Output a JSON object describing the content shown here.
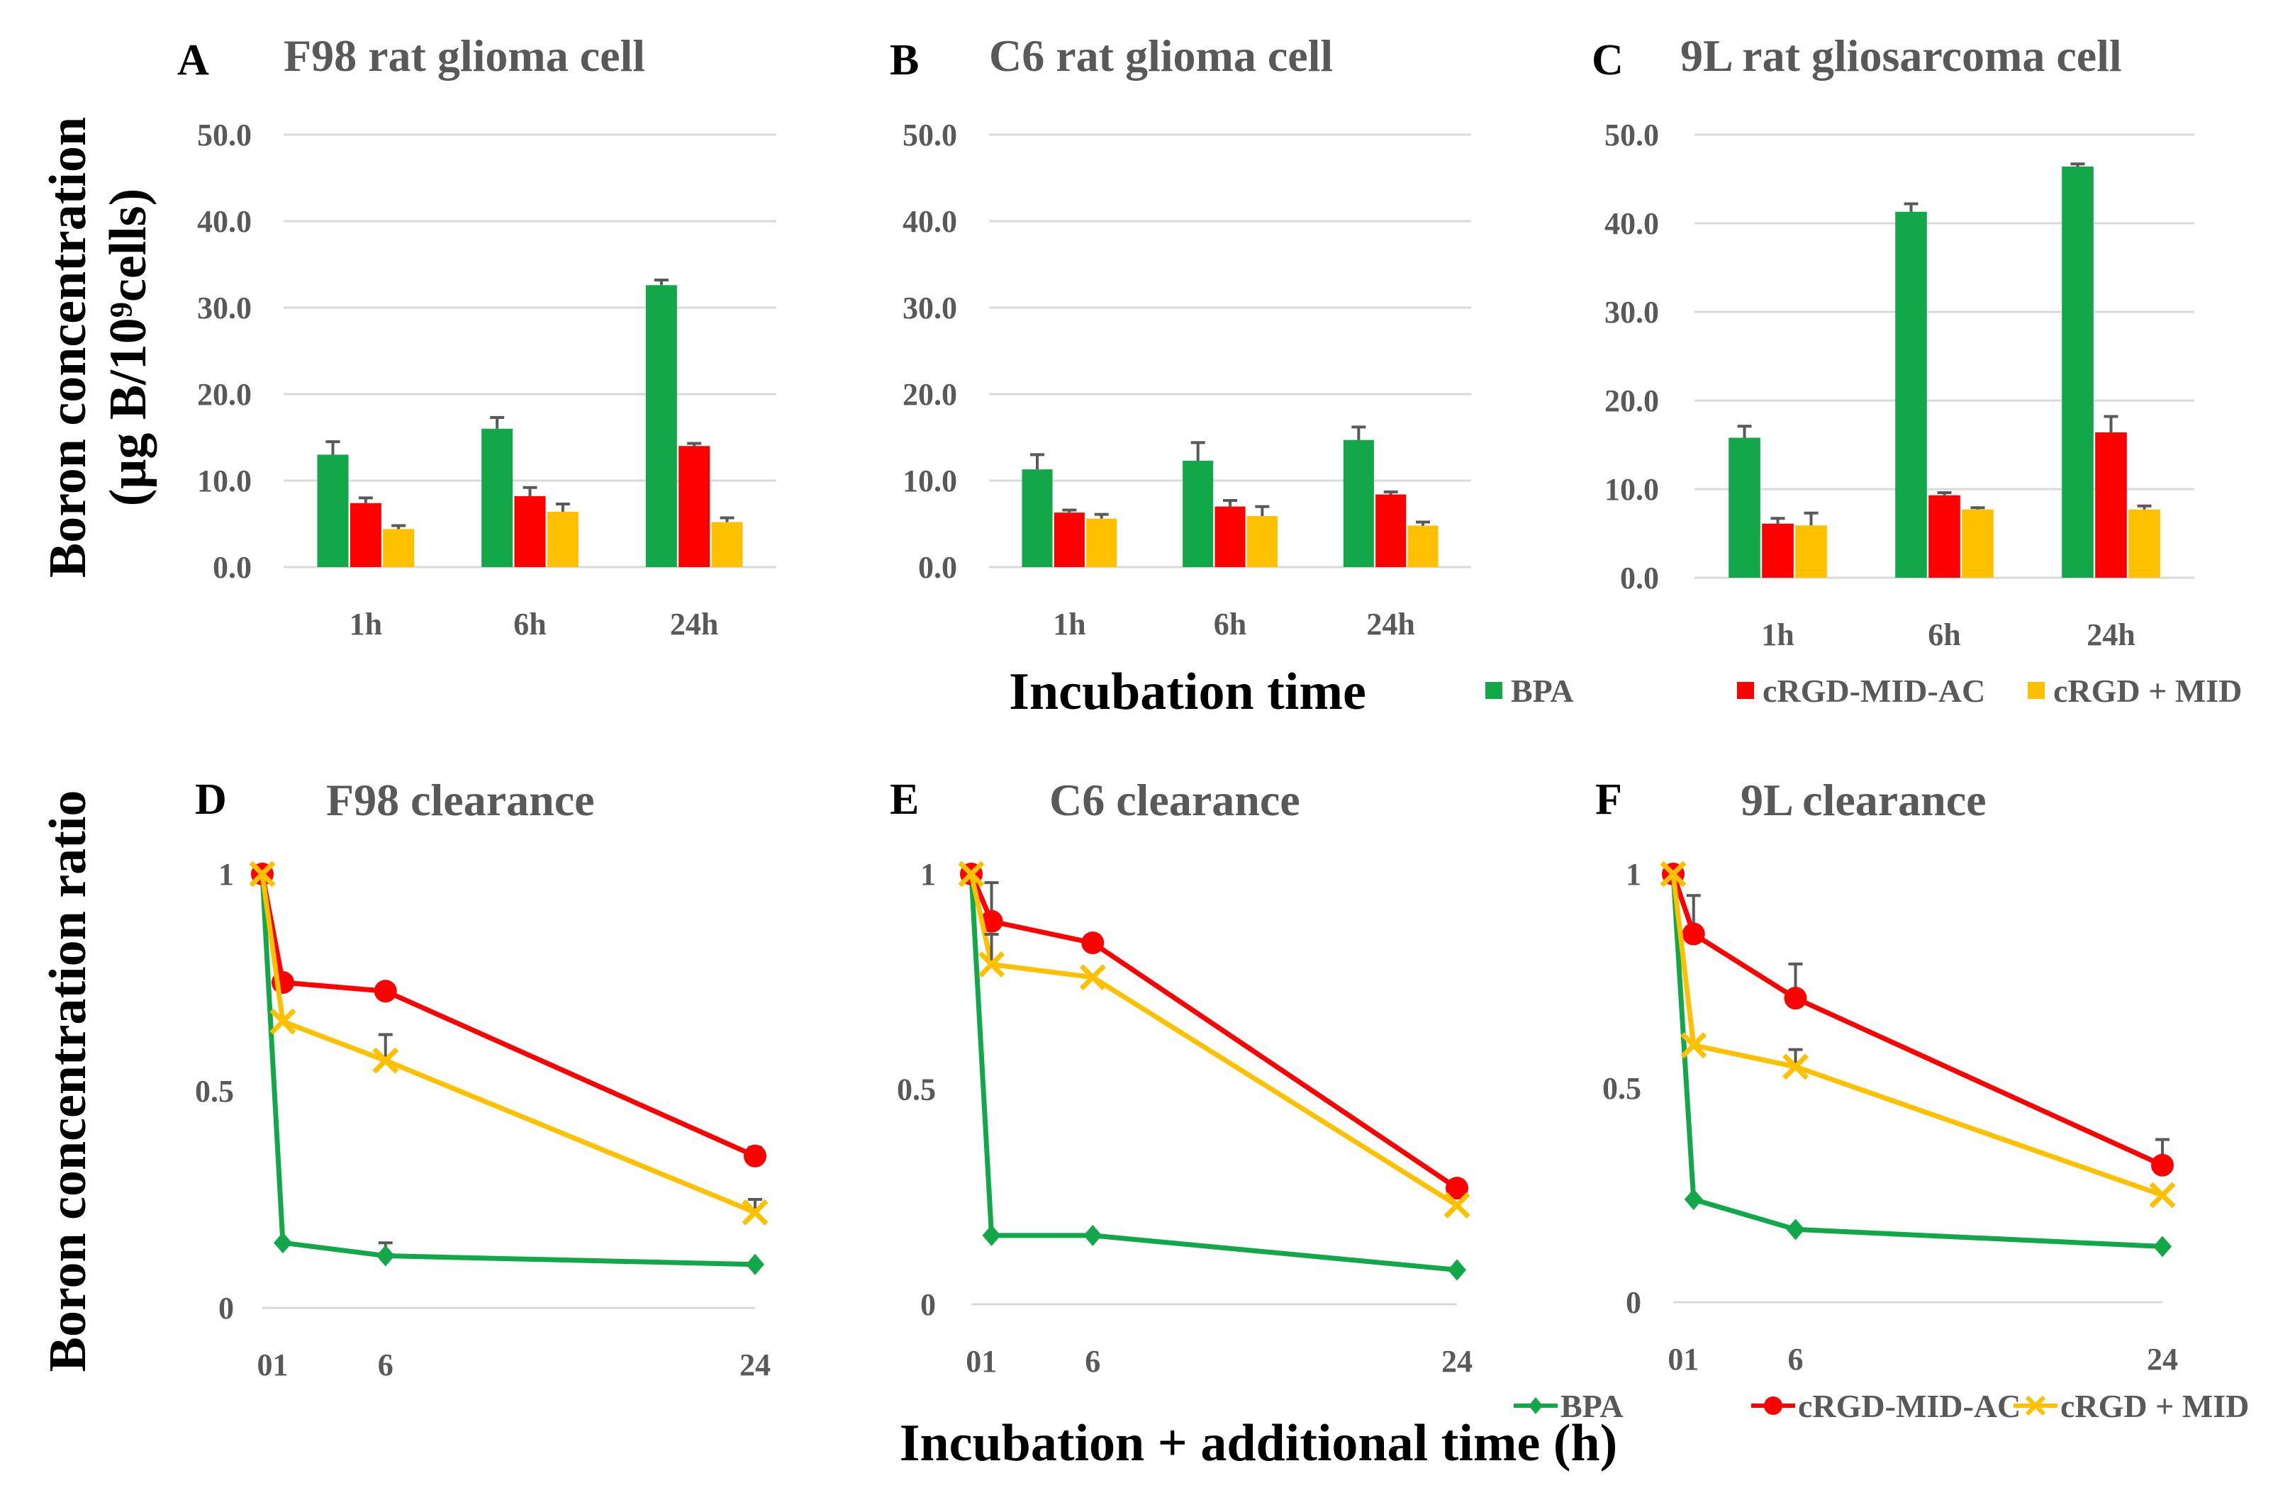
{
  "y_label_top": "Boron concentration",
  "y_label_top_unit": "(μg B/10⁹cells)",
  "x_label_top": "Incubation time",
  "y_label_bottom": "Boron concentration ratio",
  "x_label_bottom": "Incubation + additional time (h)",
  "colors": {
    "BPA": "#12a84a",
    "cRGD-MID-AC": "#ff0000",
    "cRGD + MID": "#ffc000"
  },
  "chart_data": [
    {
      "type": "bar",
      "letter": "A",
      "title": "F98 rat glioma cell",
      "categories": [
        "1h",
        "6h",
        "24h"
      ],
      "ylim": [
        0,
        50
      ],
      "yticks": [
        "0.0",
        "10.0",
        "20.0",
        "30.0",
        "40.0",
        "50.0"
      ],
      "series": [
        {
          "name": "BPA",
          "values": [
            13.0,
            16.0,
            32.6
          ],
          "errors": [
            1.5,
            1.3,
            0.6
          ]
        },
        {
          "name": "cRGD-MID-AC",
          "values": [
            7.4,
            8.2,
            14.0
          ],
          "errors": [
            0.6,
            1.0,
            0.3
          ]
        },
        {
          "name": "cRGD + MID",
          "values": [
            4.4,
            6.4,
            5.2
          ],
          "errors": [
            0.4,
            0.9,
            0.5
          ]
        }
      ]
    },
    {
      "type": "bar",
      "letter": "B",
      "title": "C6 rat glioma cell",
      "categories": [
        "1h",
        "6h",
        "24h"
      ],
      "ylim": [
        0,
        50
      ],
      "yticks": [
        "0.0",
        "10.0",
        "20.0",
        "30.0",
        "40.0",
        "50.0"
      ],
      "series": [
        {
          "name": "BPA",
          "values": [
            11.3,
            12.3,
            14.7
          ],
          "errors": [
            1.7,
            2.1,
            1.5
          ]
        },
        {
          "name": "cRGD-MID-AC",
          "values": [
            6.3,
            7.0,
            8.4
          ],
          "errors": [
            0.3,
            0.7,
            0.3
          ]
        },
        {
          "name": "cRGD + MID",
          "values": [
            5.6,
            5.9,
            4.8
          ],
          "errors": [
            0.5,
            1.1,
            0.4
          ]
        }
      ]
    },
    {
      "type": "bar",
      "letter": "C",
      "title": "9L rat gliosarcoma cell",
      "categories": [
        "1h",
        "6h",
        "24h"
      ],
      "ylim": [
        0,
        50
      ],
      "yticks": [
        "0.0",
        "10.0",
        "20.0",
        "30.0",
        "40.0",
        "50.0"
      ],
      "series": [
        {
          "name": "BPA",
          "values": [
            15.8,
            41.3,
            46.4
          ],
          "errors": [
            1.3,
            0.9,
            0.3
          ]
        },
        {
          "name": "cRGD-MID-AC",
          "values": [
            6.1,
            9.3,
            16.4
          ],
          "errors": [
            0.6,
            0.3,
            1.8
          ]
        },
        {
          "name": "cRGD + MID",
          "values": [
            5.9,
            7.7,
            7.7
          ],
          "errors": [
            1.4,
            0.2,
            0.4
          ]
        }
      ],
      "legend": [
        "BPA",
        "cRGD-MID-AC",
        "cRGD + MID"
      ]
    },
    {
      "type": "line",
      "letter": "D",
      "title": "F98 clearance",
      "x": [
        0,
        1,
        6,
        24
      ],
      "xticks": [
        "01",
        "6",
        "24"
      ],
      "xtick_pos": [
        0.5,
        6,
        24
      ],
      "xlim": [
        0,
        24
      ],
      "ylim": [
        0,
        1
      ],
      "yticks": [
        "0",
        "0.5",
        "1"
      ],
      "series": [
        {
          "name": "BPA",
          "values": [
            1,
            0.15,
            0.12,
            0.1
          ],
          "errors": [
            0,
            0,
            0.03,
            0
          ]
        },
        {
          "name": "cRGD-MID-AC",
          "values": [
            1,
            0.75,
            0.73,
            0.35
          ],
          "errors": [
            0,
            0,
            0,
            0.02
          ]
        },
        {
          "name": "cRGD + MID",
          "values": [
            1,
            0.66,
            0.57,
            0.22
          ],
          "errors": [
            0,
            0,
            0.06,
            0.03
          ]
        }
      ]
    },
    {
      "type": "line",
      "letter": "E",
      "title": "C6 clearance",
      "x": [
        0,
        1,
        6,
        24
      ],
      "xticks": [
        "01",
        "6",
        "24"
      ],
      "xtick_pos": [
        0.5,
        6,
        24
      ],
      "xlim": [
        0,
        24
      ],
      "ylim": [
        0,
        1
      ],
      "yticks": [
        "0",
        "0.5",
        "1"
      ],
      "series": [
        {
          "name": "BPA",
          "values": [
            1,
            0.16,
            0.16,
            0.08
          ],
          "errors": [
            0,
            0,
            0,
            0
          ]
        },
        {
          "name": "cRGD-MID-AC",
          "values": [
            1,
            0.89,
            0.84,
            0.27
          ],
          "errors": [
            0,
            0.09,
            0,
            0
          ]
        },
        {
          "name": "cRGD + MID",
          "values": [
            1,
            0.79,
            0.76,
            0.23
          ],
          "errors": [
            0,
            0.07,
            0,
            0
          ]
        }
      ]
    },
    {
      "type": "line",
      "letter": "F",
      "title": "9L clearance",
      "x": [
        0,
        1,
        6,
        24
      ],
      "xticks": [
        "01",
        "6",
        "24"
      ],
      "xtick_pos": [
        0.5,
        6,
        24
      ],
      "xlim": [
        0,
        24
      ],
      "ylim": [
        0,
        1
      ],
      "yticks": [
        "0",
        "0.5",
        "1"
      ],
      "series": [
        {
          "name": "BPA",
          "values": [
            1,
            0.24,
            0.17,
            0.13
          ],
          "errors": [
            0,
            0,
            0,
            0
          ]
        },
        {
          "name": "cRGD-MID-AC",
          "values": [
            1,
            0.86,
            0.71,
            0.32
          ],
          "errors": [
            0,
            0.09,
            0.08,
            0.06
          ]
        },
        {
          "name": "cRGD + MID",
          "values": [
            1,
            0.6,
            0.55,
            0.25
          ],
          "errors": [
            0,
            0,
            0.04,
            0
          ]
        }
      ],
      "legend": [
        "BPA",
        "cRGD-MID-AC",
        "cRGD + MID"
      ]
    }
  ]
}
